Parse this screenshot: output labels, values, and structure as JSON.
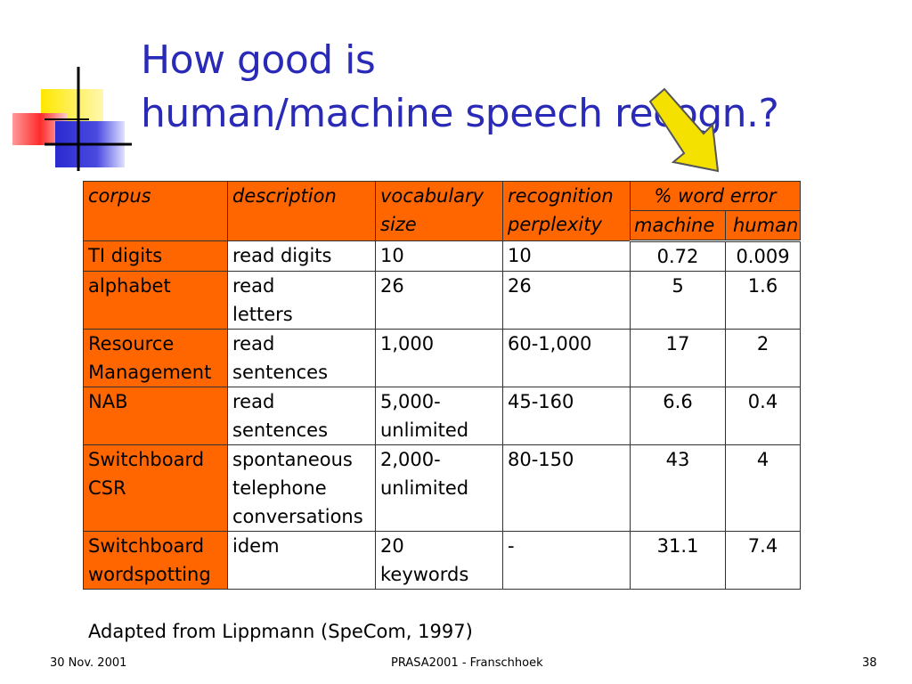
{
  "title": {
    "line1": "How good is",
    "line2": "human/machine speech recogn.?"
  },
  "table": {
    "headers": {
      "corpus": "corpus",
      "description": "description",
      "vocabulary": [
        "vocabulary",
        "size"
      ],
      "perplexity": [
        "recognition",
        "perplexity"
      ],
      "word_error": "% word error",
      "machine": "machine",
      "human": "human"
    },
    "rows": [
      {
        "corpus": [
          "TI digits"
        ],
        "description": [
          "read digits"
        ],
        "vocabulary": [
          "10"
        ],
        "perplexity": [
          "10"
        ],
        "machine": "0.72",
        "human": "0.009"
      },
      {
        "corpus": [
          "alphabet"
        ],
        "description": [
          "read",
          "letters"
        ],
        "vocabulary": [
          "26"
        ],
        "perplexity": [
          "26"
        ],
        "machine": "5",
        "human": "1.6"
      },
      {
        "corpus": [
          "Resource",
          "Management"
        ],
        "description": [
          "read",
          "sentences"
        ],
        "vocabulary": [
          "1,000"
        ],
        "perplexity": [
          "60-1,000"
        ],
        "machine": "17",
        "human": "2"
      },
      {
        "corpus": [
          "NAB"
        ],
        "description": [
          "read",
          "sentences"
        ],
        "vocabulary": [
          "5,000-",
          "unlimited"
        ],
        "perplexity": [
          "45-160"
        ],
        "machine": "6.6",
        "human": "0.4"
      },
      {
        "corpus": [
          "Switchboard",
          "CSR"
        ],
        "description": [
          "spontaneous",
          "telephone",
          "conversations"
        ],
        "vocabulary": [
          "2,000-",
          "unlimited"
        ],
        "perplexity": [
          "80-150"
        ],
        "machine": "43",
        "human": "4"
      },
      {
        "corpus": [
          "Switchboard",
          "wordspotting"
        ],
        "description": [
          "idem"
        ],
        "vocabulary": [
          "20",
          "keywords"
        ],
        "perplexity": [
          "-"
        ],
        "machine": "31.1",
        "human": "7.4"
      }
    ]
  },
  "caption": "Adapted from Lippmann (SpeCom, 1997)",
  "footer": {
    "date": "30 Nov. 2001",
    "center": "PRASA2001 - Franschhoek",
    "page": "38"
  },
  "colors": {
    "title": "#2a2ab8",
    "header_fill": "#ff6600",
    "arrow_fill": "#f5e100"
  },
  "icons": [
    "slide-ornament-icon",
    "down-arrow-icon"
  ]
}
